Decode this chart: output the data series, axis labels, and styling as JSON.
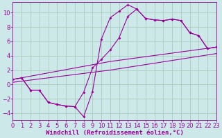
{
  "bg_color": "#cce8e8",
  "line_color": "#990099",
  "grid_color": "#aaccbb",
  "xlabel": "Windchill (Refroidissement éolien,°C)",
  "xlabel_fontsize": 6.5,
  "tick_fontsize": 6,
  "xlim": [
    0,
    23
  ],
  "ylim": [
    -5,
    11.5
  ],
  "yticks": [
    -4,
    -2,
    0,
    2,
    4,
    6,
    8,
    10
  ],
  "xticks": [
    0,
    1,
    2,
    3,
    4,
    5,
    6,
    7,
    8,
    9,
    10,
    11,
    12,
    13,
    14,
    15,
    16,
    17,
    18,
    19,
    20,
    21,
    22,
    23
  ],
  "line1_x": [
    0,
    1,
    2,
    3,
    4,
    5,
    6,
    7,
    8,
    9,
    10,
    11,
    12,
    13,
    14,
    15,
    16,
    17,
    18,
    19,
    20,
    21,
    22,
    23
  ],
  "line1_y": [
    0.7,
    0.9,
    -0.8,
    -0.8,
    -2.5,
    -2.8,
    -3.0,
    -3.1,
    -4.5,
    -1.0,
    6.3,
    9.3,
    10.2,
    11.1,
    10.5,
    9.2,
    9.0,
    8.9,
    9.1,
    8.9,
    7.2,
    6.8,
    5.0,
    5.2
  ],
  "line2_x": [
    0,
    1,
    2,
    3,
    4,
    5,
    6,
    7,
    8,
    9,
    10,
    11,
    12,
    13,
    14,
    15,
    16,
    17,
    18,
    19,
    20,
    21,
    22,
    23
  ],
  "line2_y": [
    0.7,
    0.9,
    -0.8,
    -0.8,
    -2.5,
    -2.8,
    -3.0,
    -3.1,
    -1.1,
    2.3,
    3.5,
    4.8,
    6.5,
    9.5,
    10.5,
    9.2,
    9.0,
    8.9,
    9.1,
    8.9,
    7.2,
    6.8,
    5.0,
    5.2
  ],
  "line3_x": [
    0,
    11,
    23
  ],
  "line3_y": [
    0.7,
    3.2,
    5.2
  ],
  "line4_x": [
    0,
    11,
    23
  ],
  "line4_y": [
    0.3,
    2.0,
    4.3
  ]
}
